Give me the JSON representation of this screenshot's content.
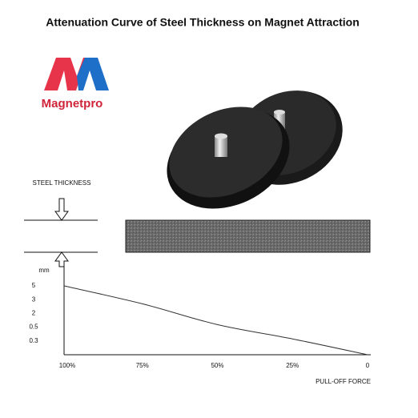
{
  "logo": "Magnetpro",
  "chart_data": {
    "type": "line",
    "title": "Attenuation Curve of Steel Thickness on Magnet Attraction",
    "thickness_label": "STEEL THICKNESS",
    "y_unit": "mm",
    "x_label": "PULL-OFF FORCE",
    "categories": [
      "100%",
      "75%",
      "50%",
      "25%",
      "0"
    ],
    "series": [
      {
        "name": "Pull-off force",
        "color": "#333333",
        "values": [
          5,
          2.7,
          0.78,
          0.33,
          0
        ]
      }
    ],
    "ylim": [
      0,
      5
    ],
    "yticks": [
      0.3,
      0.5,
      2,
      3,
      5
    ],
    "y_scale": "evenly-spaced-ticks",
    "grid": false
  }
}
